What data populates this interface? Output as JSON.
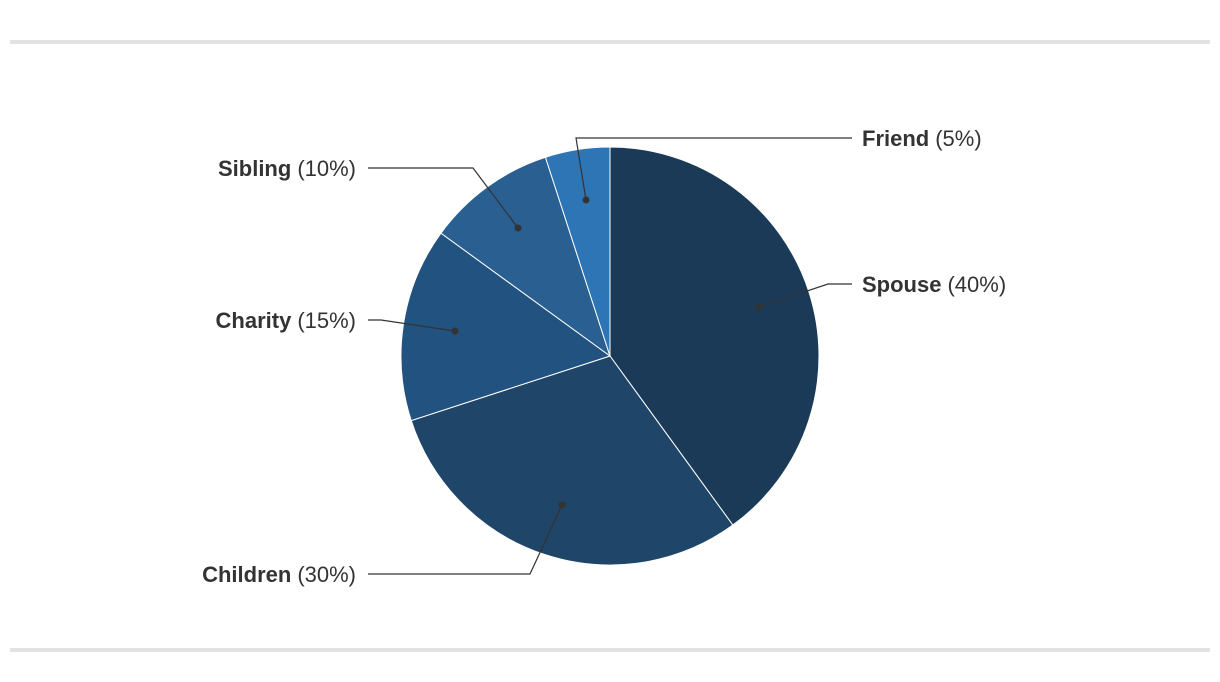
{
  "chart_data": {
    "type": "pie",
    "title": "",
    "start": "12 o'clock",
    "direction": "clockwise",
    "slices": [
      {
        "label": "Spouse",
        "pct_text": "(40%)",
        "value": 40,
        "color": "#1b3a57"
      },
      {
        "label": "Children",
        "pct_text": "(30%)",
        "value": 30,
        "color": "#1f4569"
      },
      {
        "label": "Charity",
        "pct_text": "(15%)",
        "value": 15,
        "color": "#22527f"
      },
      {
        "label": "Sibling",
        "pct_text": "(10%)",
        "value": 10,
        "color": "#2a5f91"
      },
      {
        "label": "Friend",
        "pct_text": "(5%)",
        "value": 5,
        "color": "#2e75b6"
      }
    ],
    "label_style": "outside labels with leader lines"
  }
}
